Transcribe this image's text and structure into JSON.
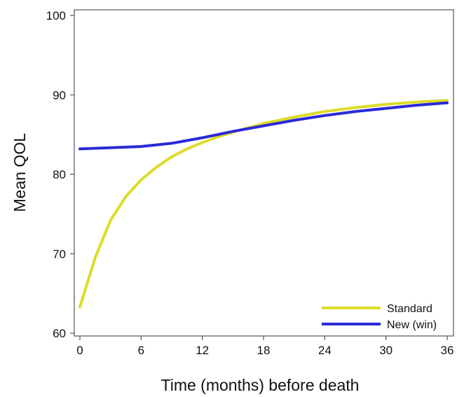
{
  "chart_data": {
    "type": "line",
    "title": "",
    "xlabel": "Time (months) before death",
    "ylabel": "Mean QOL",
    "xlim": [
      0,
      36
    ],
    "ylim": [
      60,
      100
    ],
    "xticks": [
      0,
      6,
      12,
      18,
      24,
      30,
      36
    ],
    "yticks": [
      60,
      70,
      80,
      90,
      100
    ],
    "grid": false,
    "legend_position": "bottom-right",
    "series": [
      {
        "name": "Standard",
        "color": "#dcdc2a",
        "x": [
          0,
          1.5,
          3,
          4.5,
          6,
          7.5,
          9,
          10.5,
          12,
          13.5,
          15,
          18,
          21,
          24,
          27,
          30,
          33,
          36
        ],
        "y": [
          63.3,
          69.5,
          74.2,
          77.2,
          79.3,
          80.9,
          82.2,
          83.2,
          84.0,
          84.7,
          85.3,
          86.4,
          87.2,
          87.9,
          88.4,
          88.8,
          89.1,
          89.3
        ]
      },
      {
        "name": "New (win)",
        "color": "#2a2ad8",
        "x": [
          0,
          3,
          6,
          9,
          12,
          15,
          18,
          21,
          24,
          27,
          30,
          33,
          36
        ],
        "y": [
          83.2,
          83.35,
          83.5,
          83.9,
          84.6,
          85.4,
          86.1,
          86.8,
          87.4,
          87.9,
          88.3,
          88.7,
          89.0
        ]
      }
    ]
  }
}
